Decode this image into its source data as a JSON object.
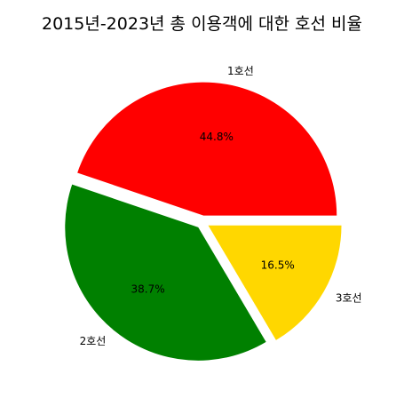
{
  "chart_data": {
    "type": "pie",
    "title": "2015년-2023년 총 이용객에 대한 호선 비율",
    "slices": [
      {
        "label": "1호선",
        "percent": 44.8,
        "percent_label": "44.8%",
        "color": "#ff0000",
        "exploded": true
      },
      {
        "label": "2호선",
        "percent": 38.7,
        "percent_label": "38.7%",
        "color": "#008000",
        "exploded": true
      },
      {
        "label": "3호선",
        "percent": 16.5,
        "percent_label": "16.5%",
        "color": "#ffd700",
        "exploded": true
      }
    ],
    "start_angle_deg": 0,
    "direction": "counterclockwise"
  }
}
